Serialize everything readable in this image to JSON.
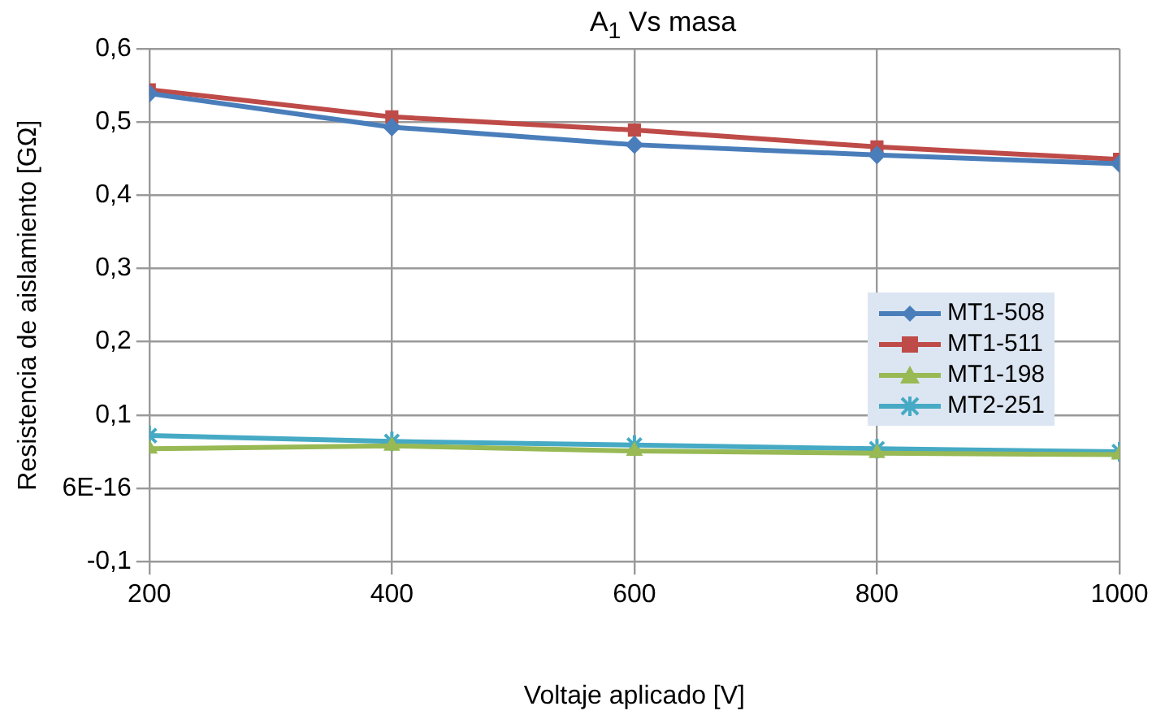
{
  "chart_data": {
    "type": "line",
    "title": "A$_{1}$ Vs masa",
    "xlabel": "Voltaje aplicado [V]",
    "ylabel": "Resistencia de aislamiento [GΩ]",
    "x": [
      200,
      400,
      600,
      800,
      1000
    ],
    "series": [
      {
        "name": "MT1-508",
        "color": "#4a7ebb",
        "marker": "diamond",
        "values": [
          0.539,
          0.493,
          0.469,
          0.455,
          0.443
        ]
      },
      {
        "name": "MT1-511",
        "color": "#be4b48",
        "marker": "square",
        "values": [
          0.544,
          0.507,
          0.489,
          0.466,
          0.449
        ]
      },
      {
        "name": "MT1-198",
        "color": "#98b954",
        "marker": "triangle",
        "values": [
          0.054,
          0.058,
          0.051,
          0.048,
          0.046
        ]
      },
      {
        "name": "MT2-251",
        "color": "#46aac5",
        "marker": "cross",
        "values": [
          0.072,
          0.064,
          0.059,
          0.054,
          0.05
        ]
      }
    ],
    "xlim": [
      200,
      1000
    ],
    "xticks": [
      200,
      400,
      600,
      800,
      1000
    ],
    "ylim": [
      -0.1,
      0.6
    ],
    "yticks": [
      {
        "value": -0.1,
        "label": "-0,1"
      },
      {
        "value": 0,
        "label": "6E-16"
      },
      {
        "value": 0.1,
        "label": "0,1"
      },
      {
        "value": 0.2,
        "label": "0,2"
      },
      {
        "value": 0.3,
        "label": "0,3"
      },
      {
        "value": 0.4,
        "label": "0,4"
      },
      {
        "value": 0.5,
        "label": "0,5"
      },
      {
        "value": 0.6,
        "label": "0,6"
      }
    ],
    "grid": true,
    "legend": "right",
    "line_style": "solid"
  }
}
